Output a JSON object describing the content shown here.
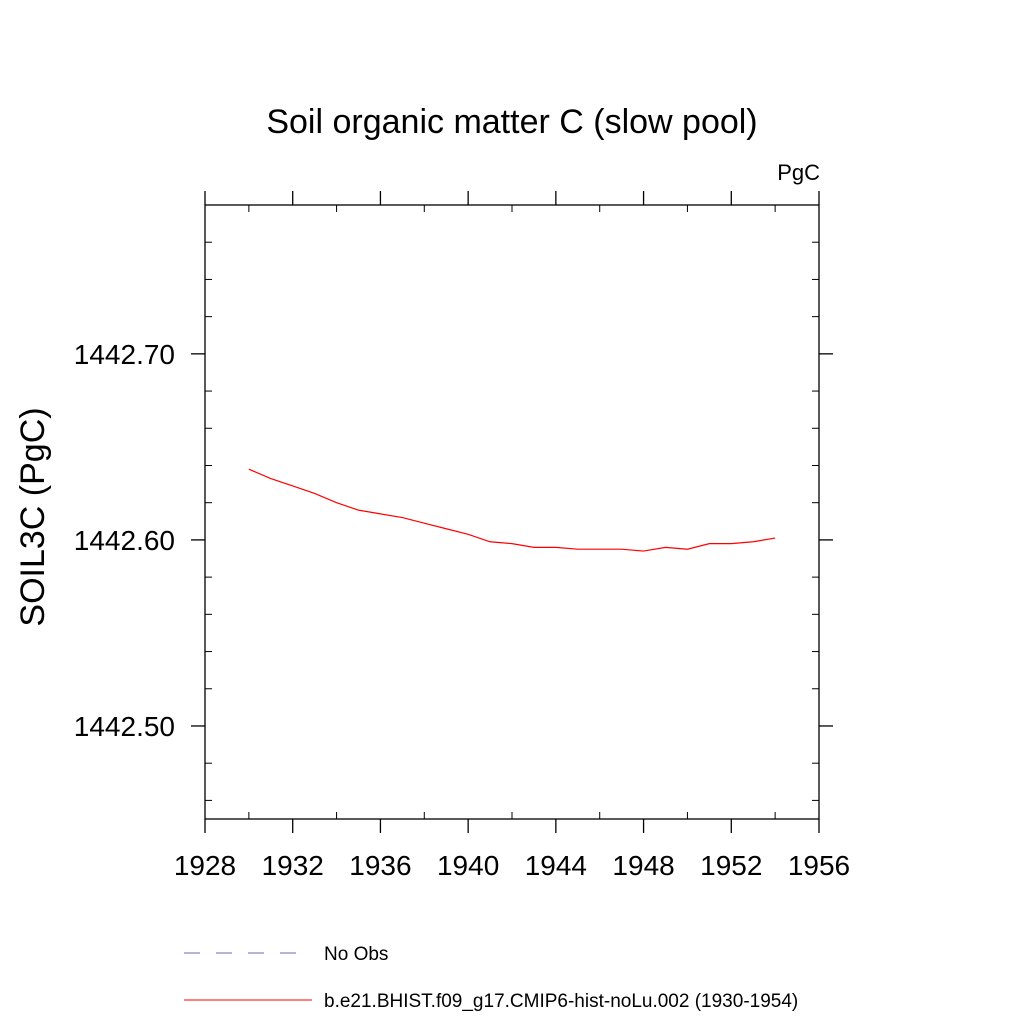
{
  "chart_data": {
    "type": "line",
    "title": "Soil organic matter C (slow pool)",
    "units": "PgC",
    "ylabel": "SOIL3C  (PgC)",
    "xlabel": "",
    "xlim": [
      1928,
      1956
    ],
    "ylim": [
      1442.45,
      1442.78
    ],
    "x_ticks": [
      1928,
      1932,
      1936,
      1940,
      1944,
      1948,
      1952,
      1956
    ],
    "y_ticks": [
      1442.5,
      1442.6,
      1442.7
    ],
    "y_tick_labels": [
      "1442.50",
      "1442.60",
      "1442.70"
    ],
    "grid": false,
    "legend_position": "bottom",
    "series": [
      {
        "name": "No Obs",
        "style": "dashed",
        "color": "#6a6ab8",
        "x": [],
        "values": []
      },
      {
        "name": "b.e21.BHIST.f09_g17.CMIP6-hist-noLu.002 (1930-1954)",
        "style": "solid",
        "color": "#ff0000",
        "x": [
          1930,
          1931,
          1932,
          1933,
          1934,
          1935,
          1936,
          1937,
          1938,
          1939,
          1940,
          1941,
          1942,
          1943,
          1944,
          1945,
          1946,
          1947,
          1948,
          1949,
          1950,
          1951,
          1952,
          1953,
          1954
        ],
        "values": [
          1442.638,
          1442.633,
          1442.629,
          1442.625,
          1442.62,
          1442.616,
          1442.614,
          1442.612,
          1442.609,
          1442.606,
          1442.603,
          1442.599,
          1442.598,
          1442.596,
          1442.596,
          1442.595,
          1442.595,
          1442.595,
          1442.594,
          1442.596,
          1442.595,
          1442.598,
          1442.598,
          1442.599,
          1442.601
        ]
      }
    ]
  }
}
